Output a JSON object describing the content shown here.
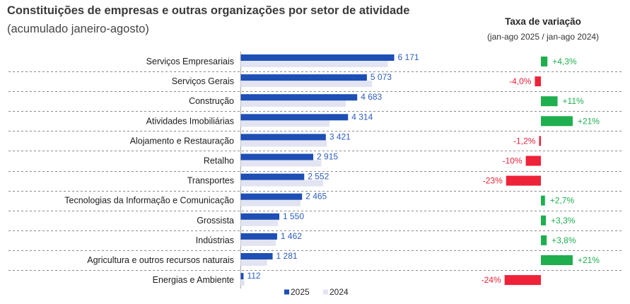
{
  "chart_data": {
    "type": "bar",
    "orientation": "horizontal",
    "title": "Constituições de empresas e outras organizações por setor de atividade",
    "subtitle": "(acumulado janeiro-agosto)",
    "categories": [
      "Serviços Empresariais",
      "Serviços Gerais",
      "Construção",
      "Atividades Imobiliárias",
      "Alojamento e Restauração",
      "Retalho",
      "Transportes",
      "Tecnologias da Informação e Comunicação",
      "Grossista",
      "Indústrias",
      "Agricultura e outros recursos naturais",
      "Energias e Ambiente"
    ],
    "series": [
      {
        "name": "2025",
        "color": "#1e4fb5",
        "values": [
          6171,
          5073,
          4683,
          4314,
          3421,
          2915,
          2552,
          2465,
          1550,
          1462,
          1281,
          112
        ],
        "value_labels": [
          "6 171",
          "5 073",
          "4 683",
          "4 314",
          "3 421",
          "2 915",
          "2 552",
          "2 465",
          "1 550",
          "1 462",
          "1 281",
          "112"
        ]
      },
      {
        "name": "2024",
        "color": "#e2e4f2",
        "values": [
          5920,
          5280,
          4220,
          3570,
          3460,
          3240,
          3310,
          2400,
          1500,
          1410,
          1060,
          150
        ]
      }
    ],
    "legend": "bottom",
    "grid": false,
    "change": {
      "type": "bar",
      "title": "Taxa de variação",
      "subtitle": "(jan-ago 2025 / jan-ago 2024)",
      "values": [
        4.3,
        -4.0,
        11,
        21,
        -1.2,
        -10,
        -23,
        2.7,
        3.3,
        3.8,
        21,
        -24
      ],
      "value_labels": [
        "+4,3%",
        "-4,0%",
        "+11%",
        "+21%",
        "-1,2%",
        "-10%",
        "-23%",
        "+2,7%",
        "+3,3%",
        "+3,8%",
        "+21%",
        "-24%"
      ],
      "positive_color": "#1faf4e",
      "negative_color": "#ee2239"
    }
  }
}
